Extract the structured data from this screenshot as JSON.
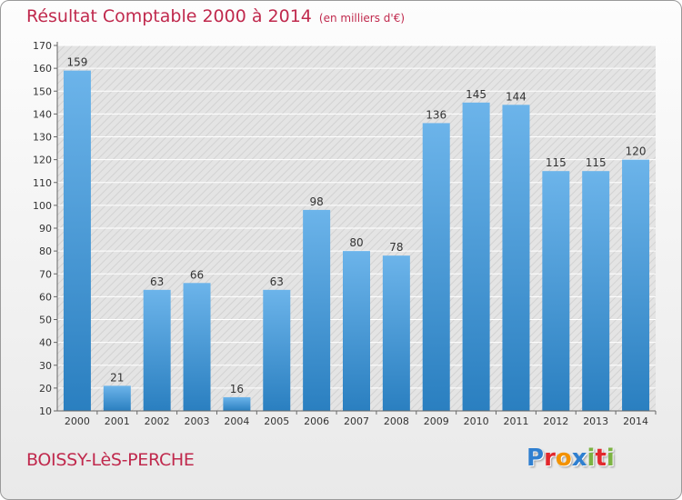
{
  "title": "Résultat Comptable 2000 à 2014",
  "unit_note": "(en milliers d'€)",
  "town": "BOISSY-LèS-PERCHE",
  "logo": {
    "text": "Proxiti",
    "letters": [
      "P",
      "r",
      "o",
      "x",
      "i",
      "t",
      "i"
    ],
    "colors": [
      "#2f7fd0",
      "#e2282d",
      "#f39200",
      "#2f7fd0",
      "#7cb342",
      "#e2282d",
      "#7cb342"
    ]
  },
  "colors": {
    "title": "#c0294d",
    "bar_top": "#6cb4ea",
    "bar_bottom": "#2a7fc0"
  },
  "chart_data": {
    "type": "bar",
    "title": "Résultat Comptable 2000 à 2014",
    "xlabel": "",
    "ylabel": "",
    "categories": [
      "2000",
      "2001",
      "2002",
      "2003",
      "2004",
      "2005",
      "2006",
      "2007",
      "2008",
      "2009",
      "2010",
      "2011",
      "2012",
      "2013",
      "2014"
    ],
    "values": [
      159,
      21,
      63,
      66,
      16,
      63,
      98,
      80,
      78,
      136,
      145,
      144,
      115,
      115,
      120
    ],
    "ylim": [
      10,
      170
    ],
    "yticks": [
      10,
      20,
      30,
      40,
      50,
      60,
      70,
      80,
      90,
      100,
      110,
      120,
      130,
      140,
      150,
      160,
      170
    ],
    "grid": true
  }
}
